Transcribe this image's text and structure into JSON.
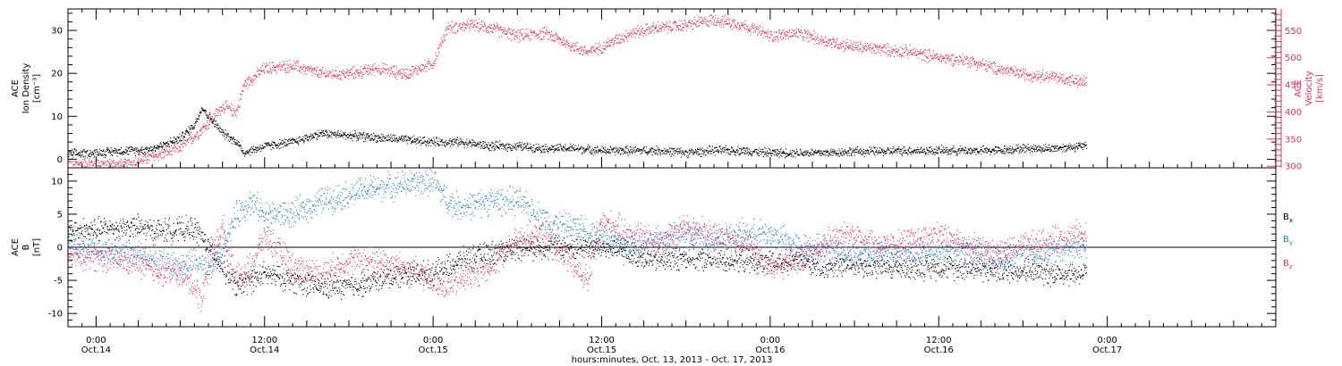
{
  "colors": {
    "black": "#000000",
    "magenta": "#e8305f",
    "blue": "#1e7fd8"
  },
  "x_axis": {
    "label": "hours:minutes, Oct. 13, 2013 - Oct. 17, 2013",
    "range_hours": [
      -2,
      84
    ],
    "ticks": [
      {
        "t": 0,
        "time": "0:00",
        "date": "Oct.14"
      },
      {
        "t": 12,
        "time": "12:00",
        "date": "Oct.14"
      },
      {
        "t": 24,
        "time": "0:00",
        "date": "Oct.15"
      },
      {
        "t": 36,
        "time": "12:00",
        "date": "Oct.15"
      },
      {
        "t": 48,
        "time": "0:00",
        "date": "Oct.16"
      },
      {
        "t": 60,
        "time": "12:00",
        "date": "Oct.16"
      },
      {
        "t": 72,
        "time": "0:00",
        "date": "Oct.17"
      }
    ]
  },
  "chart_data": [
    {
      "type": "scatter",
      "panel": "top",
      "left_axis": {
        "label_lines": [
          "ACE",
          "Ion Density",
          "[cm⁻³]"
        ],
        "ylim": [
          -2,
          35
        ],
        "ticks": [
          0,
          10,
          20,
          30
        ],
        "color": "#000000"
      },
      "right_axis": {
        "label_lines": [
          "ACE",
          "Velocity",
          "[km/s]"
        ],
        "ylim": [
          297,
          590
        ],
        "ticks": [
          300,
          350,
          400,
          450,
          500,
          550
        ],
        "color": "#e8305f"
      },
      "series": [
        {
          "axis": "left",
          "color": "#000000",
          "points": [
            [
              -2,
              1.2
            ],
            [
              0,
              1.5
            ],
            [
              2,
              2
            ],
            [
              3,
              2
            ],
            [
              4,
              2.5
            ],
            [
              5,
              3.5
            ],
            [
              6,
              5
            ],
            [
              7,
              8
            ],
            [
              7.5,
              12
            ],
            [
              8,
              10
            ],
            [
              9,
              6
            ],
            [
              10,
              4
            ],
            [
              10.5,
              1.5
            ],
            [
              11,
              2
            ],
            [
              12,
              3
            ],
            [
              14,
              4
            ],
            [
              16,
              6
            ],
            [
              18,
              5.5
            ],
            [
              20,
              5
            ],
            [
              22,
              4.5
            ],
            [
              24,
              4
            ],
            [
              26,
              4
            ],
            [
              28,
              3
            ],
            [
              30,
              3
            ],
            [
              32,
              2.5
            ],
            [
              34,
              2.5
            ],
            [
              36,
              2
            ],
            [
              38,
              2
            ],
            [
              40,
              2
            ],
            [
              42,
              1.5
            ],
            [
              44,
              2
            ],
            [
              46,
              2
            ],
            [
              48,
              1.5
            ],
            [
              50,
              1.5
            ],
            [
              52,
              1.5
            ],
            [
              54,
              1.8
            ],
            [
              56,
              1.8
            ],
            [
              58,
              2
            ],
            [
              60,
              2
            ],
            [
              62,
              2
            ],
            [
              64,
              2
            ],
            [
              66,
              2.5
            ],
            [
              68,
              2.5
            ],
            [
              70,
              3
            ],
            [
              70.5,
              3
            ]
          ]
        },
        {
          "axis": "right",
          "color": "#e8305f",
          "points": [
            [
              -2,
              305
            ],
            [
              0,
              305
            ],
            [
              2,
              302
            ],
            [
              3,
              310
            ],
            [
              5,
              325
            ],
            [
              6,
              335
            ],
            [
              7,
              355
            ],
            [
              8,
              380
            ],
            [
              9,
              410
            ],
            [
              10,
              400
            ],
            [
              10.5,
              450
            ],
            [
              11,
              460
            ],
            [
              12,
              480
            ],
            [
              14,
              485
            ],
            [
              16,
              470
            ],
            [
              18,
              470
            ],
            [
              20,
              480
            ],
            [
              22,
              470
            ],
            [
              24,
              490
            ],
            [
              25,
              555
            ],
            [
              27,
              560
            ],
            [
              28,
              555
            ],
            [
              30,
              540
            ],
            [
              32,
              545
            ],
            [
              34,
              520
            ],
            [
              35,
              510
            ],
            [
              36,
              520
            ],
            [
              38,
              545
            ],
            [
              40,
              555
            ],
            [
              42,
              560
            ],
            [
              44,
              570
            ],
            [
              46,
              560
            ],
            [
              48,
              540
            ],
            [
              50,
              545
            ],
            [
              52,
              530
            ],
            [
              54,
              520
            ],
            [
              56,
              515
            ],
            [
              58,
              510
            ],
            [
              60,
              500
            ],
            [
              62,
              495
            ],
            [
              64,
              480
            ],
            [
              66,
              470
            ],
            [
              68,
              465
            ],
            [
              70,
              455
            ],
            [
              70.5,
              455
            ]
          ]
        }
      ]
    },
    {
      "type": "scatter",
      "panel": "bottom",
      "left_axis": {
        "label_lines": [
          "ACE",
          "B",
          "[nT]"
        ],
        "ylim": [
          -12,
          12
        ],
        "ticks": [
          -10,
          -5,
          0,
          5,
          10
        ],
        "color": "#000000"
      },
      "zero_line": true,
      "series": [
        {
          "name": "Bx",
          "color": "#000000",
          "points": [
            [
              -2,
              2.5
            ],
            [
              0,
              2.6
            ],
            [
              2,
              3
            ],
            [
              3,
              3
            ],
            [
              4,
              2.5
            ],
            [
              6,
              2.6
            ],
            [
              7,
              2.8
            ],
            [
              8,
              0
            ],
            [
              9,
              -3
            ],
            [
              10,
              -6
            ],
            [
              11,
              -5
            ],
            [
              12,
              -4
            ],
            [
              14,
              -5
            ],
            [
              16,
              -6
            ],
            [
              18,
              -6
            ],
            [
              20,
              -5
            ],
            [
              22,
              -4
            ],
            [
              24,
              -4
            ],
            [
              26,
              -2
            ],
            [
              28,
              -1
            ],
            [
              30,
              0
            ],
            [
              32,
              0
            ],
            [
              34,
              0
            ],
            [
              36,
              0
            ],
            [
              38,
              -1
            ],
            [
              40,
              -2
            ],
            [
              42,
              -1.5
            ],
            [
              44,
              -2
            ],
            [
              46,
              -2
            ],
            [
              48,
              -2.5
            ],
            [
              50,
              -2
            ],
            [
              52,
              -3
            ],
            [
              54,
              -2.5
            ],
            [
              56,
              -3
            ],
            [
              58,
              -3
            ],
            [
              60,
              -3
            ],
            [
              62,
              -3
            ],
            [
              64,
              -3.5
            ],
            [
              66,
              -3.5
            ],
            [
              68,
              -4
            ],
            [
              70,
              -4
            ],
            [
              70.5,
              -4
            ]
          ]
        },
        {
          "name": "By",
          "color": "#1e7fd8",
          "points": [
            [
              -2,
              0
            ],
            [
              0,
              -0.5
            ],
            [
              2,
              -1
            ],
            [
              3,
              -1
            ],
            [
              4,
              -2
            ],
            [
              6,
              -3
            ],
            [
              7,
              -2
            ],
            [
              8,
              -4
            ],
            [
              9,
              0
            ],
            [
              10,
              5
            ],
            [
              11,
              7
            ],
            [
              12,
              5
            ],
            [
              14,
              5
            ],
            [
              16,
              7
            ],
            [
              18,
              8
            ],
            [
              20,
              9
            ],
            [
              22,
              9.5
            ],
            [
              24,
              10
            ],
            [
              25,
              7
            ],
            [
              26,
              6
            ],
            [
              28,
              7
            ],
            [
              30,
              7
            ],
            [
              32,
              4
            ],
            [
              34,
              3
            ],
            [
              36,
              2
            ],
            [
              38,
              0
            ],
            [
              40,
              1
            ],
            [
              42,
              2
            ],
            [
              44,
              1
            ],
            [
              46,
              2
            ],
            [
              48,
              2
            ],
            [
              50,
              0
            ],
            [
              52,
              0
            ],
            [
              54,
              -1
            ],
            [
              56,
              -1
            ],
            [
              58,
              -1
            ],
            [
              60,
              -1
            ],
            [
              62,
              0
            ],
            [
              64,
              -2
            ],
            [
              66,
              -1
            ],
            [
              68,
              -1
            ],
            [
              70,
              0
            ],
            [
              70.5,
              0
            ]
          ]
        },
        {
          "name": "Bz",
          "color": "#e8305f",
          "points": [
            [
              -2,
              -1.2
            ],
            [
              0,
              -1.5
            ],
            [
              2,
              -2
            ],
            [
              3,
              -2.5
            ],
            [
              4,
              -3.5
            ],
            [
              6,
              -4
            ],
            [
              7,
              -6
            ],
            [
              7.5,
              -8
            ],
            [
              8,
              -2
            ],
            [
              9,
              3
            ],
            [
              10,
              -5
            ],
            [
              11,
              -3
            ],
            [
              12,
              2
            ],
            [
              14,
              -3
            ],
            [
              16,
              -4
            ],
            [
              18,
              -2
            ],
            [
              20,
              -2
            ],
            [
              22,
              -3
            ],
            [
              24,
              -5
            ],
            [
              25,
              -6
            ],
            [
              26,
              -5
            ],
            [
              28,
              -3
            ],
            [
              30,
              1
            ],
            [
              32,
              2
            ],
            [
              34,
              -3
            ],
            [
              35,
              -5
            ],
            [
              36,
              4
            ],
            [
              38,
              2
            ],
            [
              40,
              1
            ],
            [
              42,
              3
            ],
            [
              44,
              2
            ],
            [
              46,
              1
            ],
            [
              48,
              -3
            ],
            [
              50,
              -2
            ],
            [
              52,
              1
            ],
            [
              54,
              2
            ],
            [
              56,
              0
            ],
            [
              58,
              1
            ],
            [
              60,
              2
            ],
            [
              62,
              0
            ],
            [
              64,
              -1
            ],
            [
              66,
              0
            ],
            [
              68,
              1
            ],
            [
              70,
              2
            ],
            [
              70.5,
              2
            ]
          ]
        }
      ],
      "legend": [
        {
          "text": "B",
          "sub": "x",
          "color": "#000000"
        },
        {
          "text": "B",
          "sub": "y",
          "color": "#1e7fd8"
        },
        {
          "text": "B",
          "sub": "z",
          "color": "#e8305f"
        }
      ]
    }
  ]
}
